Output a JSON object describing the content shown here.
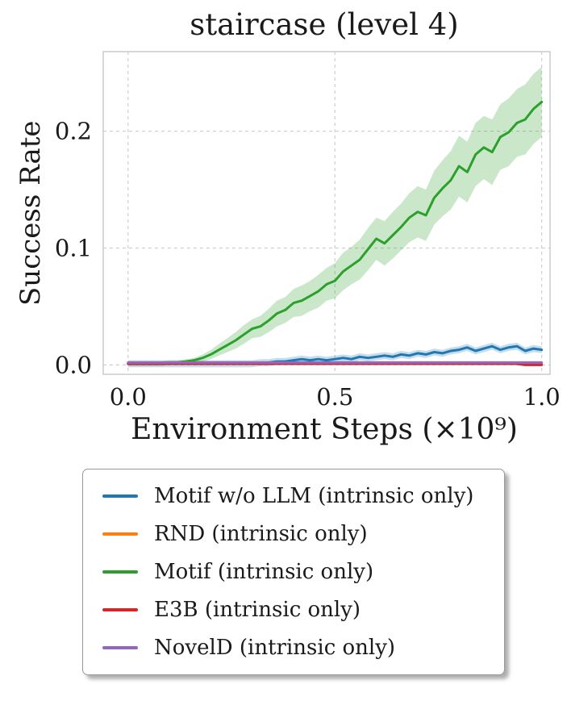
{
  "chart_data": {
    "type": "line",
    "title": "staircase (level 4)",
    "xlabel": "Environment Steps (×10⁹)",
    "ylabel": "Success Rate",
    "xlim": [
      -0.06,
      1.02
    ],
    "ylim": [
      -0.008,
      0.268
    ],
    "xticks": [
      0.0,
      0.5,
      1.0
    ],
    "xtick_labels": [
      "0.0",
      "0.5",
      "1.0"
    ],
    "yticks": [
      0.0,
      0.1,
      0.2
    ],
    "ytick_labels": [
      "0.0",
      "0.1",
      "0.2"
    ],
    "grid": true,
    "legend_position": "below-outside",
    "x": [
      0,
      0.02,
      0.04,
      0.06,
      0.08,
      0.1,
      0.12,
      0.14,
      0.16,
      0.18,
      0.2,
      0.22,
      0.24,
      0.26,
      0.28,
      0.3,
      0.32,
      0.34,
      0.36,
      0.38,
      0.4,
      0.42,
      0.44,
      0.46,
      0.48,
      0.5,
      0.52,
      0.54,
      0.56,
      0.58,
      0.6,
      0.62,
      0.64,
      0.66,
      0.68,
      0.7,
      0.72,
      0.74,
      0.76,
      0.78,
      0.8,
      0.82,
      0.84,
      0.86,
      0.88,
      0.9,
      0.92,
      0.94,
      0.96,
      0.98,
      1.0
    ],
    "series": [
      {
        "name": "Motif w/o LLM (intrinsic only)",
        "color": "#1f77b4",
        "values": [
          0.001,
          0.001,
          0.001,
          0.001,
          0.001,
          0.001,
          0.001,
          0.001,
          0.001,
          0.001,
          0.001,
          0.001,
          0.001,
          0.001,
          0.001,
          0.001,
          0.002,
          0.002,
          0.003,
          0.003,
          0.004,
          0.005,
          0.004,
          0.005,
          0.004,
          0.005,
          0.006,
          0.005,
          0.007,
          0.006,
          0.007,
          0.008,
          0.007,
          0.009,
          0.008,
          0.01,
          0.009,
          0.011,
          0.01,
          0.012,
          0.013,
          0.015,
          0.012,
          0.014,
          0.016,
          0.013,
          0.015,
          0.016,
          0.012,
          0.014,
          0.013
        ],
        "band": 0.003
      },
      {
        "name": "RND (intrinsic only)",
        "color": "#ff7f0e",
        "values": [
          0.001,
          0.001,
          0.001,
          0.001,
          0.001,
          0.001,
          0.001,
          0.001,
          0.001,
          0.001,
          0.001,
          0.001,
          0.001,
          0.001,
          0.001,
          0.001,
          0.001,
          0.001,
          0.001,
          0.001,
          0.001,
          0.001,
          0.001,
          0.001,
          0.001,
          0.001,
          0.001,
          0.001,
          0.001,
          0.001,
          0.001,
          0.001,
          0.001,
          0.001,
          0.001,
          0.001,
          0.001,
          0.001,
          0.001,
          0.001,
          0.001,
          0.001,
          0.001,
          0.001,
          0.001,
          0.001,
          0.001,
          0.001,
          0.001,
          0.001,
          0.001
        ],
        "band": 0.001
      },
      {
        "name": "Motif (intrinsic only)",
        "color": "#2ca02c",
        "values": [
          0.001,
          0.001,
          0.001,
          0.001,
          0.001,
          0.002,
          0.002,
          0.003,
          0.004,
          0.006,
          0.009,
          0.013,
          0.017,
          0.021,
          0.026,
          0.031,
          0.033,
          0.038,
          0.044,
          0.047,
          0.053,
          0.055,
          0.059,
          0.063,
          0.069,
          0.072,
          0.08,
          0.085,
          0.09,
          0.099,
          0.108,
          0.104,
          0.111,
          0.118,
          0.126,
          0.131,
          0.128,
          0.143,
          0.151,
          0.158,
          0.17,
          0.165,
          0.18,
          0.186,
          0.182,
          0.195,
          0.199,
          0.207,
          0.21,
          0.219,
          0.225
        ],
        "band": [
          0.002,
          0.002,
          0.002,
          0.002,
          0.002,
          0.002,
          0.002,
          0.002,
          0.002,
          0.003,
          0.004,
          0.005,
          0.006,
          0.007,
          0.008,
          0.008,
          0.009,
          0.01,
          0.011,
          0.011,
          0.012,
          0.013,
          0.013,
          0.014,
          0.014,
          0.015,
          0.016,
          0.016,
          0.017,
          0.018,
          0.018,
          0.019,
          0.02,
          0.02,
          0.021,
          0.022,
          0.022,
          0.023,
          0.024,
          0.025,
          0.026,
          0.026,
          0.027,
          0.027,
          0.028,
          0.028,
          0.029,
          0.029,
          0.03,
          0.03,
          0.03
        ]
      },
      {
        "name": "E3B (intrinsic only)",
        "color": "#d62728",
        "values": [
          0.001,
          0.001,
          0.001,
          0.001,
          0.001,
          0.001,
          0.001,
          0.001,
          0.001,
          0.001,
          0.001,
          0.001,
          0.001,
          0.001,
          0.001,
          0.001,
          0.001,
          0.001,
          0.001,
          0.001,
          0.001,
          0.001,
          0.001,
          0.001,
          0.001,
          0.001,
          0.001,
          0.001,
          0.001,
          0.001,
          0.001,
          0.001,
          0.001,
          0.001,
          0.001,
          0.001,
          0.001,
          0.001,
          0.001,
          0.001,
          0.001,
          0.001,
          0.001,
          0.001,
          0.001,
          0.001,
          0.001,
          0.001,
          0.0,
          0.0,
          0.0
        ],
        "band": 0.001
      },
      {
        "name": "NovelD (intrinsic only)",
        "color": "#9467bd",
        "values": [
          0.002,
          0.002,
          0.002,
          0.002,
          0.002,
          0.002,
          0.002,
          0.002,
          0.002,
          0.002,
          0.002,
          0.002,
          0.002,
          0.002,
          0.002,
          0.002,
          0.002,
          0.002,
          0.002,
          0.002,
          0.002,
          0.002,
          0.002,
          0.002,
          0.002,
          0.002,
          0.002,
          0.002,
          0.002,
          0.002,
          0.002,
          0.002,
          0.002,
          0.002,
          0.002,
          0.002,
          0.002,
          0.002,
          0.002,
          0.002,
          0.002,
          0.002,
          0.002,
          0.002,
          0.002,
          0.002,
          0.002,
          0.002,
          0.002,
          0.002,
          0.002
        ],
        "band": 0.0015
      }
    ]
  }
}
